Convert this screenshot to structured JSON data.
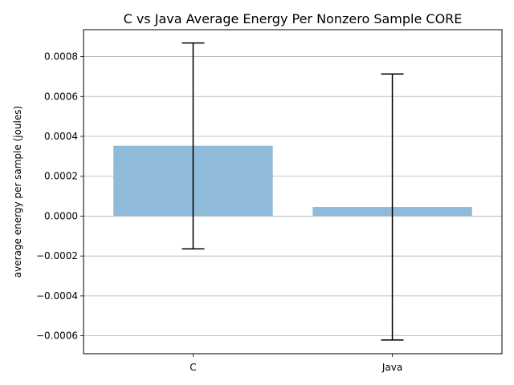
{
  "chart_data": {
    "type": "bar",
    "title": "C vs Java Average Energy Per Nonzero Sample CORE",
    "xlabel": "",
    "ylabel": "average energy per sample (joules)",
    "categories": [
      "C",
      "Java"
    ],
    "values": [
      0.000353,
      4.6e-05
    ],
    "error_low": [
      -0.000164,
      -0.000621
    ],
    "error_high": [
      0.000868,
      0.000713
    ],
    "ylim": [
      -0.00069,
      0.000935
    ],
    "yticks": [
      -0.0006,
      -0.0004,
      -0.0002,
      0.0,
      0.0002,
      0.0004,
      0.0006,
      0.0008
    ],
    "ytick_labels": [
      "−0.0006",
      "−0.0004",
      "−0.0002",
      "0.0000",
      "0.0002",
      "0.0004",
      "0.0006",
      "0.0008"
    ],
    "grid": "y",
    "bar_color": "#8fbad9",
    "error_color": "#000000",
    "grid_color": "#b0b0b0"
  }
}
